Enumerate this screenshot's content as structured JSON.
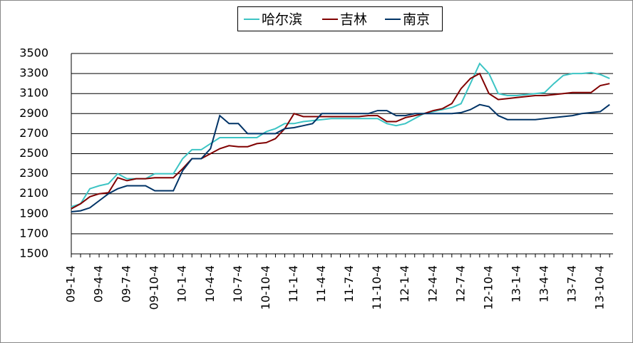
{
  "chart_data": {
    "type": "line",
    "categories": [
      "09-1-4",
      null,
      null,
      "09-4-4",
      null,
      null,
      "09-7-4",
      null,
      null,
      "09-10-4",
      null,
      null,
      "10-1-4",
      null,
      null,
      "10-4-4",
      null,
      null,
      "10-7-4",
      null,
      null,
      "10-10-4",
      null,
      null,
      "11-1-4",
      null,
      null,
      "11-4-4",
      null,
      null,
      "11-7-4",
      null,
      null,
      "11-10-4",
      null,
      null,
      "12-1-4",
      null,
      null,
      "12-4-4",
      null,
      null,
      "12-7-4",
      null,
      null,
      "12-10-4",
      null,
      null,
      "13-1-4",
      null,
      null,
      "13-4-4",
      null,
      null,
      "13-7-4",
      null,
      null,
      "13-10-4",
      null
    ],
    "series": [
      {
        "name": "哈尔滨",
        "color": "#3cc4c4",
        "values": [
          1970,
          2000,
          2150,
          2180,
          2200,
          2300,
          2250,
          2250,
          2250,
          2300,
          2300,
          2300,
          2450,
          2540,
          2540,
          2600,
          2660,
          2660,
          2660,
          2660,
          2660,
          2720,
          2750,
          2800,
          2800,
          2820,
          2830,
          2840,
          2850,
          2850,
          2850,
          2850,
          2850,
          2850,
          2800,
          2780,
          2800,
          2850,
          2900,
          2920,
          2940,
          2960,
          3000,
          3200,
          3400,
          3300,
          3100,
          3080,
          3080,
          3090,
          3100,
          3110,
          3200,
          3280,
          3300,
          3300,
          3310,
          3290,
          3250
        ]
      },
      {
        "name": "吉林",
        "color": "#800000",
        "values": [
          1950,
          2000,
          2070,
          2100,
          2110,
          2260,
          2230,
          2250,
          2250,
          2260,
          2260,
          2260,
          2350,
          2450,
          2450,
          2500,
          2550,
          2580,
          2570,
          2570,
          2600,
          2610,
          2650,
          2750,
          2900,
          2870,
          2870,
          2870,
          2870,
          2870,
          2870,
          2870,
          2880,
          2880,
          2820,
          2820,
          2860,
          2880,
          2900,
          2930,
          2950,
          3000,
          3150,
          3250,
          3300,
          3100,
          3040,
          3050,
          3060,
          3070,
          3080,
          3080,
          3090,
          3100,
          3110,
          3110,
          3110,
          3180,
          3200
        ]
      },
      {
        "name": "南京",
        "color": "#003366",
        "values": [
          1920,
          1930,
          1960,
          2030,
          2100,
          2150,
          2180,
          2180,
          2180,
          2130,
          2130,
          2130,
          2330,
          2450,
          2450,
          2550,
          2880,
          2800,
          2800,
          2700,
          2700,
          2700,
          2700,
          2750,
          2760,
          2780,
          2800,
          2900,
          2900,
          2900,
          2900,
          2900,
          2900,
          2930,
          2930,
          2880,
          2880,
          2900,
          2900,
          2900,
          2900,
          2900,
          2910,
          2940,
          2990,
          2970,
          2880,
          2840,
          2840,
          2840,
          2840,
          2850,
          2860,
          2870,
          2880,
          2900,
          2910,
          2920,
          2990
        ]
      }
    ],
    "ylim": [
      1500,
      3500
    ],
    "yticks": [
      1500,
      1700,
      1900,
      2100,
      2300,
      2500,
      2700,
      2900,
      3100,
      3300,
      3500
    ],
    "grid": true,
    "legend": "top"
  }
}
